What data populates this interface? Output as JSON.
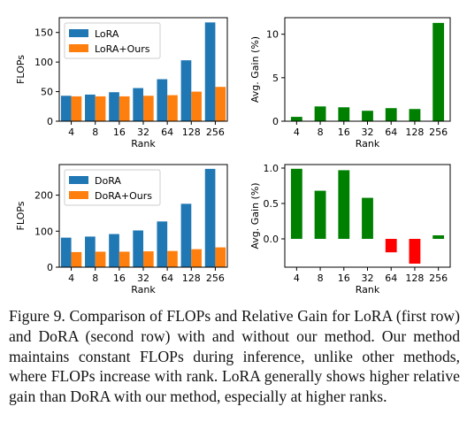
{
  "figure_number_label": "Figure 9.",
  "caption": "Comparison of FLOPs and Relative Gain for LoRA (first row) and DoRA (second row) with and without our method. Our method maintains constant FLOPs during inference, unlike other methods, where FLOPs increase with rank. LoRA generally shows higher relative gain than DoRA with our method, especially at higher ranks.",
  "colors": {
    "baseline": "#1f77b4",
    "ours": "#ff7f0e",
    "gain_positive": "#008000",
    "gain_negative": "#ff0000"
  },
  "chart_data": [
    {
      "type": "bar",
      "categories": [
        "4",
        "8",
        "16",
        "32",
        "64",
        "128",
        "256"
      ],
      "xlabel": "Rank",
      "ylabel": "FLOPs",
      "ylim": [
        0,
        175
      ],
      "yticks": [
        0,
        50,
        100,
        150
      ],
      "legend_position": "top-left",
      "series": [
        {
          "name": "LoRA",
          "color": "#1f77b4",
          "values": [
            43,
            45,
            49,
            56,
            71,
            103,
            167
          ]
        },
        {
          "name": "LoRA+Ours",
          "color": "#ff7f0e",
          "values": [
            42,
            42,
            42,
            43,
            44,
            50,
            58
          ]
        }
      ]
    },
    {
      "type": "bar",
      "categories": [
        "4",
        "8",
        "16",
        "32",
        "64",
        "128",
        "256"
      ],
      "xlabel": "Rank",
      "ylabel": "Avg. Gain (%)",
      "ylim": [
        0,
        11.9
      ],
      "yticks": [
        0,
        5,
        10
      ],
      "series": [
        {
          "values": [
            0.5,
            1.7,
            1.6,
            1.2,
            1.5,
            1.4,
            11.3
          ]
        }
      ]
    },
    {
      "type": "bar",
      "categories": [
        "4",
        "8",
        "16",
        "32",
        "64",
        "128",
        "256"
      ],
      "xlabel": "Rank",
      "ylabel": "FLOPs",
      "ylim": [
        0,
        285
      ],
      "yticks": [
        0,
        100,
        200
      ],
      "legend_position": "top-left",
      "series": [
        {
          "name": "DoRA",
          "color": "#1f77b4",
          "values": [
            82,
            85,
            92,
            102,
            127,
            176,
            273
          ]
        },
        {
          "name": "DoRA+Ours",
          "color": "#ff7f0e",
          "values": [
            42,
            43,
            43,
            44,
            45,
            50,
            55
          ]
        }
      ]
    },
    {
      "type": "bar",
      "categories": [
        "4",
        "8",
        "16",
        "32",
        "64",
        "128",
        "256"
      ],
      "xlabel": "Rank",
      "ylabel": "Avg. Gain (%)",
      "ylim": [
        -0.4,
        1.05
      ],
      "yticks": [
        0.0,
        0.5,
        1.0
      ],
      "series": [
        {
          "values": [
            0.99,
            0.68,
            0.97,
            0.58,
            -0.19,
            -0.35,
            0.05
          ]
        }
      ]
    }
  ]
}
